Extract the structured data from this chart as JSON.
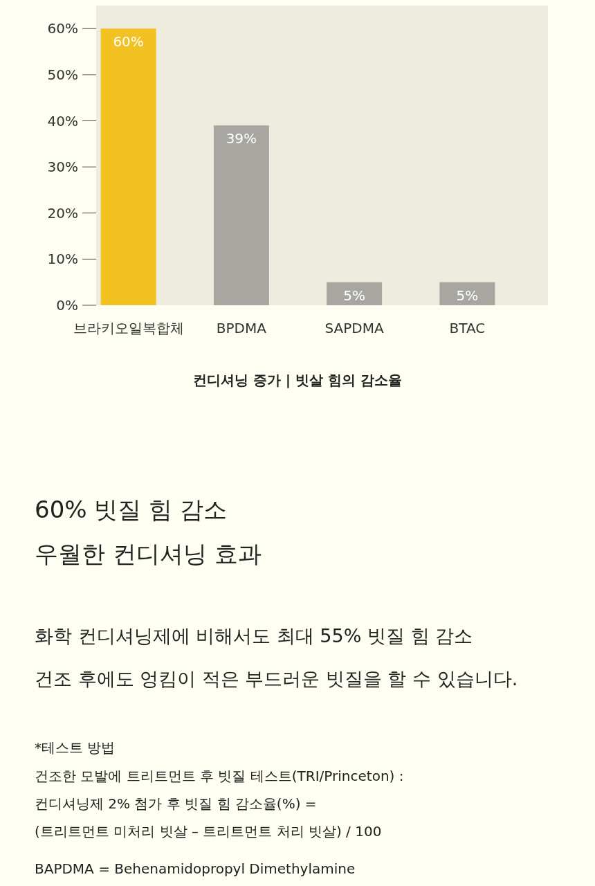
{
  "chart_data": {
    "type": "bar",
    "categories": [
      "브라키오일복합체",
      "BPDMA",
      "SAPDMA",
      "BTAC"
    ],
    "values": [
      60,
      39,
      5,
      5
    ],
    "colors": [
      "#f2c122",
      "#a7a6a0",
      "#a7a6a0",
      "#a7a6a0"
    ],
    "value_labels": [
      "60%",
      "39%",
      "5%",
      "5%"
    ],
    "ylim": [
      0,
      65
    ],
    "yticks": [
      {
        "value": 0,
        "label": "0%"
      },
      {
        "value": 10,
        "label": "10%"
      },
      {
        "value": 20,
        "label": "20%"
      },
      {
        "value": 30,
        "label": "30%"
      },
      {
        "value": 40,
        "label": "40%"
      },
      {
        "value": 50,
        "label": "50%"
      },
      {
        "value": 60,
        "label": "60%"
      }
    ],
    "xlabel": "컨디셔닝 증가 | 빗살 힘의 감소율",
    "annotations": [
      "60% 빗질 힘 감소",
      "우월한 컨디셔닝 효과",
      "화학 컨디셔닝제에 비해서도 최대 55% 빗질 힘 감소",
      "건조 후에도 엉킴이 적은 부드러운 빗질을 할 수 있습니다.",
      "*테스트 방법",
      "건조한 모발에 트리트먼트 후 빗질 테스트(TRI/Princeton) :",
      "컨디셔닝제 2% 첨가 후 빗질 힘 감소율(%) =",
      "(트리트먼트 미처리 빗살 – 트리트먼트 처리 빗살) / 100",
      "BAPDMA = Behenamidopropyl Dimethylamine"
    ]
  }
}
